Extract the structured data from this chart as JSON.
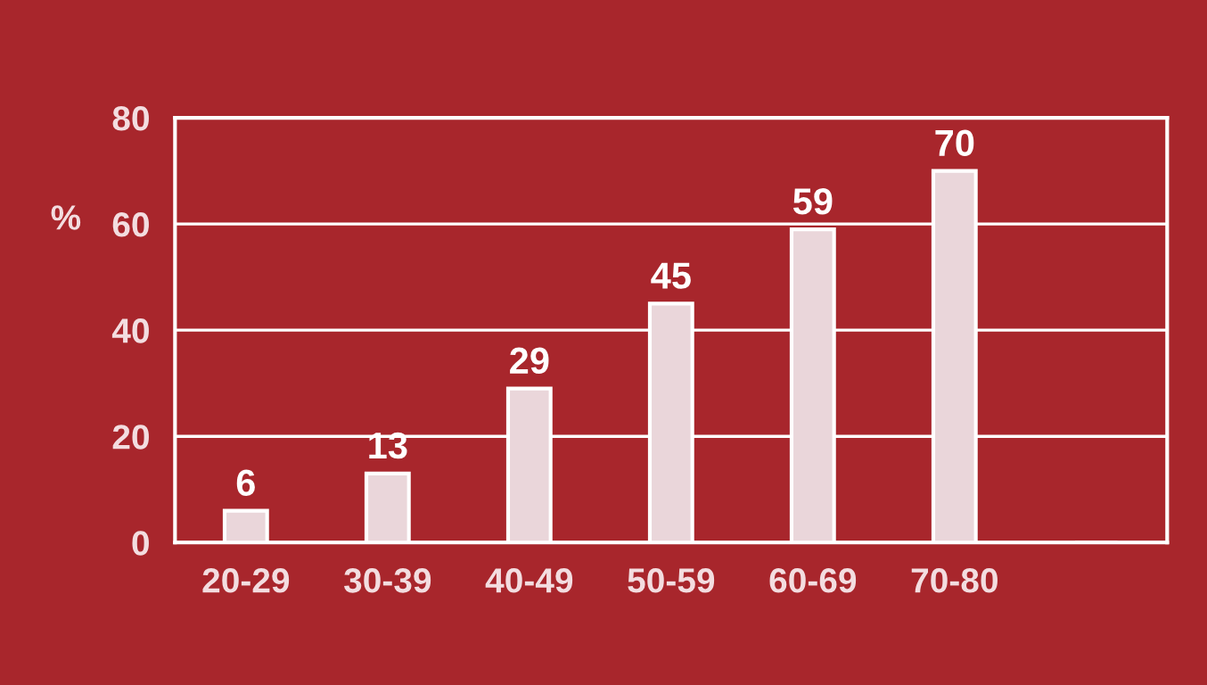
{
  "chart_data": {
    "type": "bar",
    "ylabel": "%",
    "categories": [
      "20-29",
      "30-39",
      "40-49",
      "50-59",
      "60-69",
      "70-80",
      null
    ],
    "values": [
      6,
      13,
      29,
      45,
      59,
      70,
      null
    ],
    "color": "#ead6da",
    "ylim": [
      0,
      80
    ],
    "yticks": [
      0,
      20,
      40,
      60,
      80
    ],
    "grid": "y",
    "data_labels": true
  }
}
